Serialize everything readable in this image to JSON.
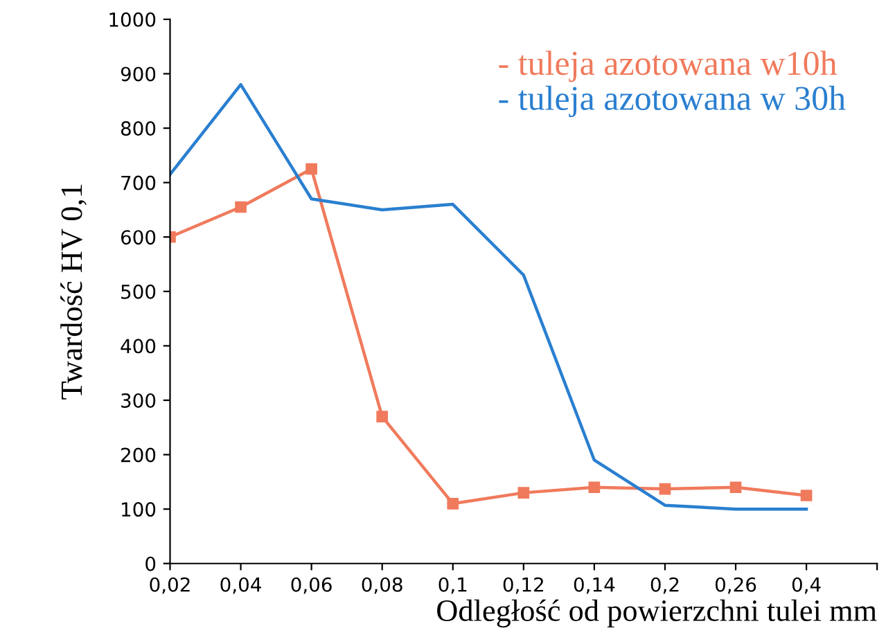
{
  "chart_data": {
    "type": "line",
    "xlabel": "Odległość od powierzchni tulei mm",
    "ylabel": "Twardość HV 0,1",
    "categories": [
      "0,02",
      "0,04",
      "0,06",
      "0,08",
      "0,1",
      "0,12",
      "0,14",
      "0,2",
      "0,26",
      "0,4",
      null
    ],
    "series": [
      {
        "name": "- tuleja azotowana w10h",
        "color": "#f07a5c",
        "marker": "square",
        "values": [
          600,
          655,
          725,
          270,
          110,
          130,
          140,
          137,
          140,
          125,
          null
        ]
      },
      {
        "name": "- tuleja azotowana w 30h",
        "color": "#2a7fd0",
        "marker": "none",
        "values": [
          715,
          880,
          670,
          650,
          660,
          530,
          190,
          107,
          100,
          100,
          null
        ]
      }
    ],
    "ylim": [
      0,
      1000
    ],
    "yticks": [
      0,
      100,
      200,
      300,
      400,
      500,
      600,
      700,
      800,
      900,
      1000
    ],
    "grid": false,
    "legend": "top right"
  }
}
